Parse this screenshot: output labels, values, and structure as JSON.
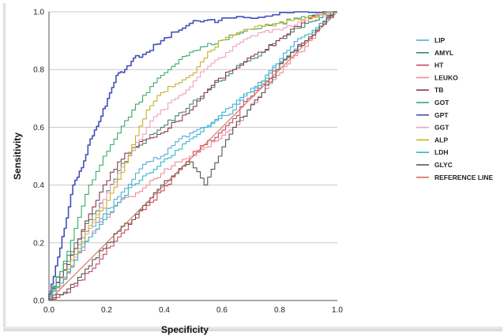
{
  "chart_data": {
    "type": "line",
    "title": "",
    "xlabel": "Specificity",
    "ylabel": "Sensitivity",
    "xlim": [
      0.0,
      1.0
    ],
    "ylim": [
      0.0,
      1.0
    ],
    "x_ticks": [
      "0.0",
      "0.2",
      "0.4",
      "0.6",
      "0.8",
      "1.0"
    ],
    "y_ticks": [
      "0.0",
      "0.2",
      "0.4",
      "0.6",
      "0.8",
      "1.0"
    ],
    "grid": "horizontal",
    "legend_position": "right",
    "series": [
      {
        "name": "LIP",
        "color": "#5aa8e0",
        "points": [
          [
            0,
            0
          ],
          [
            0.05,
            0.08
          ],
          [
            0.1,
            0.18
          ],
          [
            0.15,
            0.25
          ],
          [
            0.2,
            0.3
          ],
          [
            0.25,
            0.36
          ],
          [
            0.3,
            0.42
          ],
          [
            0.35,
            0.48
          ],
          [
            0.4,
            0.5
          ],
          [
            0.45,
            0.55
          ],
          [
            0.5,
            0.58
          ],
          [
            0.55,
            0.6
          ],
          [
            0.6,
            0.63
          ],
          [
            0.65,
            0.66
          ],
          [
            0.7,
            0.72
          ],
          [
            0.75,
            0.76
          ],
          [
            0.8,
            0.82
          ],
          [
            0.85,
            0.86
          ],
          [
            0.9,
            0.9
          ],
          [
            0.95,
            0.96
          ],
          [
            1,
            1
          ]
        ]
      },
      {
        "name": "AMYL",
        "color": "#3a8a6a",
        "points": [
          [
            0,
            0
          ],
          [
            0.05,
            0.1
          ],
          [
            0.1,
            0.2
          ],
          [
            0.15,
            0.28
          ],
          [
            0.2,
            0.35
          ],
          [
            0.25,
            0.45
          ],
          [
            0.3,
            0.52
          ],
          [
            0.35,
            0.56
          ],
          [
            0.4,
            0.6
          ],
          [
            0.45,
            0.64
          ],
          [
            0.5,
            0.68
          ],
          [
            0.55,
            0.72
          ],
          [
            0.6,
            0.76
          ],
          [
            0.65,
            0.8
          ],
          [
            0.7,
            0.83
          ],
          [
            0.75,
            0.86
          ],
          [
            0.8,
            0.9
          ],
          [
            0.85,
            0.93
          ],
          [
            0.9,
            0.96
          ],
          [
            0.95,
            0.98
          ],
          [
            1,
            1
          ]
        ]
      },
      {
        "name": "HT",
        "color": "#cc4466",
        "points": [
          [
            0,
            0
          ],
          [
            0.05,
            0.02
          ],
          [
            0.1,
            0.05
          ],
          [
            0.15,
            0.1
          ],
          [
            0.2,
            0.16
          ],
          [
            0.25,
            0.22
          ],
          [
            0.3,
            0.28
          ],
          [
            0.35,
            0.33
          ],
          [
            0.4,
            0.38
          ],
          [
            0.45,
            0.44
          ],
          [
            0.5,
            0.5
          ],
          [
            0.55,
            0.54
          ],
          [
            0.6,
            0.58
          ],
          [
            0.65,
            0.63
          ],
          [
            0.7,
            0.7
          ],
          [
            0.75,
            0.75
          ],
          [
            0.8,
            0.8
          ],
          [
            0.85,
            0.86
          ],
          [
            0.9,
            0.9
          ],
          [
            0.95,
            0.95
          ],
          [
            1,
            1
          ]
        ]
      },
      {
        "name": "LEUKO",
        "color": "#f08a9a",
        "points": [
          [
            0,
            0
          ],
          [
            0.05,
            0.06
          ],
          [
            0.1,
            0.14
          ],
          [
            0.15,
            0.22
          ],
          [
            0.2,
            0.28
          ],
          [
            0.25,
            0.34
          ],
          [
            0.3,
            0.36
          ],
          [
            0.35,
            0.4
          ],
          [
            0.4,
            0.44
          ],
          [
            0.45,
            0.48
          ],
          [
            0.5,
            0.5
          ],
          [
            0.55,
            0.53
          ],
          [
            0.6,
            0.56
          ],
          [
            0.65,
            0.6
          ],
          [
            0.7,
            0.66
          ],
          [
            0.75,
            0.72
          ],
          [
            0.8,
            0.78
          ],
          [
            0.85,
            0.84
          ],
          [
            0.9,
            0.88
          ],
          [
            0.95,
            0.95
          ],
          [
            1,
            1
          ]
        ]
      },
      {
        "name": "TB",
        "color": "#8a3a4a",
        "points": [
          [
            0,
            0
          ],
          [
            0.05,
            0.08
          ],
          [
            0.1,
            0.18
          ],
          [
            0.15,
            0.3
          ],
          [
            0.2,
            0.4
          ],
          [
            0.25,
            0.48
          ],
          [
            0.3,
            0.53
          ],
          [
            0.35,
            0.56
          ],
          [
            0.4,
            0.58
          ],
          [
            0.45,
            0.62
          ],
          [
            0.5,
            0.66
          ],
          [
            0.55,
            0.72
          ],
          [
            0.6,
            0.77
          ],
          [
            0.65,
            0.8
          ],
          [
            0.7,
            0.84
          ],
          [
            0.75,
            0.86
          ],
          [
            0.8,
            0.9
          ],
          [
            0.85,
            0.94
          ],
          [
            0.9,
            0.97
          ],
          [
            0.95,
            0.99
          ],
          [
            1,
            1
          ]
        ]
      },
      {
        "name": "GOT",
        "color": "#3aaa6a",
        "points": [
          [
            0,
            0
          ],
          [
            0.05,
            0.1
          ],
          [
            0.1,
            0.25
          ],
          [
            0.15,
            0.4
          ],
          [
            0.2,
            0.5
          ],
          [
            0.25,
            0.58
          ],
          [
            0.3,
            0.66
          ],
          [
            0.35,
            0.72
          ],
          [
            0.4,
            0.78
          ],
          [
            0.45,
            0.82
          ],
          [
            0.5,
            0.86
          ],
          [
            0.55,
            0.88
          ],
          [
            0.6,
            0.9
          ],
          [
            0.65,
            0.92
          ],
          [
            0.7,
            0.94
          ],
          [
            0.75,
            0.95
          ],
          [
            0.8,
            0.96
          ],
          [
            0.85,
            0.97
          ],
          [
            0.9,
            0.98
          ],
          [
            0.95,
            0.99
          ],
          [
            1,
            1
          ]
        ]
      },
      {
        "name": "GPT",
        "color": "#4450b8",
        "points": [
          [
            0,
            0
          ],
          [
            0.03,
            0.12
          ],
          [
            0.06,
            0.25
          ],
          [
            0.09,
            0.4
          ],
          [
            0.12,
            0.46
          ],
          [
            0.15,
            0.56
          ],
          [
            0.18,
            0.62
          ],
          [
            0.21,
            0.7
          ],
          [
            0.24,
            0.78
          ],
          [
            0.27,
            0.8
          ],
          [
            0.3,
            0.84
          ],
          [
            0.35,
            0.86
          ],
          [
            0.4,
            0.9
          ],
          [
            0.45,
            0.93
          ],
          [
            0.5,
            0.96
          ],
          [
            0.55,
            0.97
          ],
          [
            0.6,
            0.97
          ],
          [
            0.7,
            0.98
          ],
          [
            0.8,
            0.99
          ],
          [
            0.9,
            1
          ],
          [
            1,
            1
          ]
        ]
      },
      {
        "name": "GGT",
        "color": "#f0a0c0",
        "points": [
          [
            0,
            0
          ],
          [
            0.05,
            0.05
          ],
          [
            0.1,
            0.15
          ],
          [
            0.15,
            0.25
          ],
          [
            0.2,
            0.35
          ],
          [
            0.25,
            0.44
          ],
          [
            0.3,
            0.52
          ],
          [
            0.35,
            0.6
          ],
          [
            0.4,
            0.66
          ],
          [
            0.45,
            0.7
          ],
          [
            0.5,
            0.74
          ],
          [
            0.55,
            0.8
          ],
          [
            0.6,
            0.84
          ],
          [
            0.65,
            0.88
          ],
          [
            0.7,
            0.91
          ],
          [
            0.75,
            0.93
          ],
          [
            0.8,
            0.94
          ],
          [
            0.85,
            0.95
          ],
          [
            0.9,
            0.97
          ],
          [
            0.95,
            0.99
          ],
          [
            1,
            1
          ]
        ]
      },
      {
        "name": "ALP",
        "color": "#c8b020",
        "points": [
          [
            0,
            0
          ],
          [
            0.05,
            0.06
          ],
          [
            0.1,
            0.16
          ],
          [
            0.15,
            0.26
          ],
          [
            0.2,
            0.32
          ],
          [
            0.25,
            0.42
          ],
          [
            0.3,
            0.54
          ],
          [
            0.35,
            0.66
          ],
          [
            0.4,
            0.72
          ],
          [
            0.45,
            0.75
          ],
          [
            0.5,
            0.78
          ],
          [
            0.55,
            0.84
          ],
          [
            0.6,
            0.9
          ],
          [
            0.65,
            0.92
          ],
          [
            0.7,
            0.94
          ],
          [
            0.75,
            0.95
          ],
          [
            0.8,
            0.96
          ],
          [
            0.85,
            0.97
          ],
          [
            0.9,
            0.98
          ],
          [
            0.95,
            0.99
          ],
          [
            1,
            1
          ]
        ]
      },
      {
        "name": "LDH",
        "color": "#30b8c8",
        "points": [
          [
            0,
            0
          ],
          [
            0.05,
            0.06
          ],
          [
            0.1,
            0.14
          ],
          [
            0.15,
            0.22
          ],
          [
            0.2,
            0.28
          ],
          [
            0.25,
            0.34
          ],
          [
            0.3,
            0.4
          ],
          [
            0.35,
            0.44
          ],
          [
            0.4,
            0.48
          ],
          [
            0.45,
            0.52
          ],
          [
            0.5,
            0.56
          ],
          [
            0.55,
            0.6
          ],
          [
            0.6,
            0.64
          ],
          [
            0.65,
            0.68
          ],
          [
            0.7,
            0.72
          ],
          [
            0.75,
            0.76
          ],
          [
            0.8,
            0.82
          ],
          [
            0.85,
            0.88
          ],
          [
            0.9,
            0.92
          ],
          [
            0.95,
            0.96
          ],
          [
            1,
            1
          ]
        ]
      },
      {
        "name": "GLYC",
        "color": "#555555",
        "points": [
          [
            0,
            0
          ],
          [
            0.05,
            0.02
          ],
          [
            0.1,
            0.06
          ],
          [
            0.15,
            0.12
          ],
          [
            0.2,
            0.18
          ],
          [
            0.25,
            0.24
          ],
          [
            0.3,
            0.28
          ],
          [
            0.35,
            0.34
          ],
          [
            0.4,
            0.4
          ],
          [
            0.45,
            0.44
          ],
          [
            0.5,
            0.48
          ],
          [
            0.55,
            0.4
          ],
          [
            0.6,
            0.5
          ],
          [
            0.65,
            0.6
          ],
          [
            0.7,
            0.66
          ],
          [
            0.75,
            0.72
          ],
          [
            0.8,
            0.8
          ],
          [
            0.85,
            0.86
          ],
          [
            0.9,
            0.9
          ],
          [
            0.95,
            0.95
          ],
          [
            1,
            1
          ]
        ]
      },
      {
        "name": "REFERENCE LINE",
        "color": "#d07050",
        "points": [
          [
            0,
            0
          ],
          [
            1,
            1
          ]
        ]
      }
    ]
  }
}
